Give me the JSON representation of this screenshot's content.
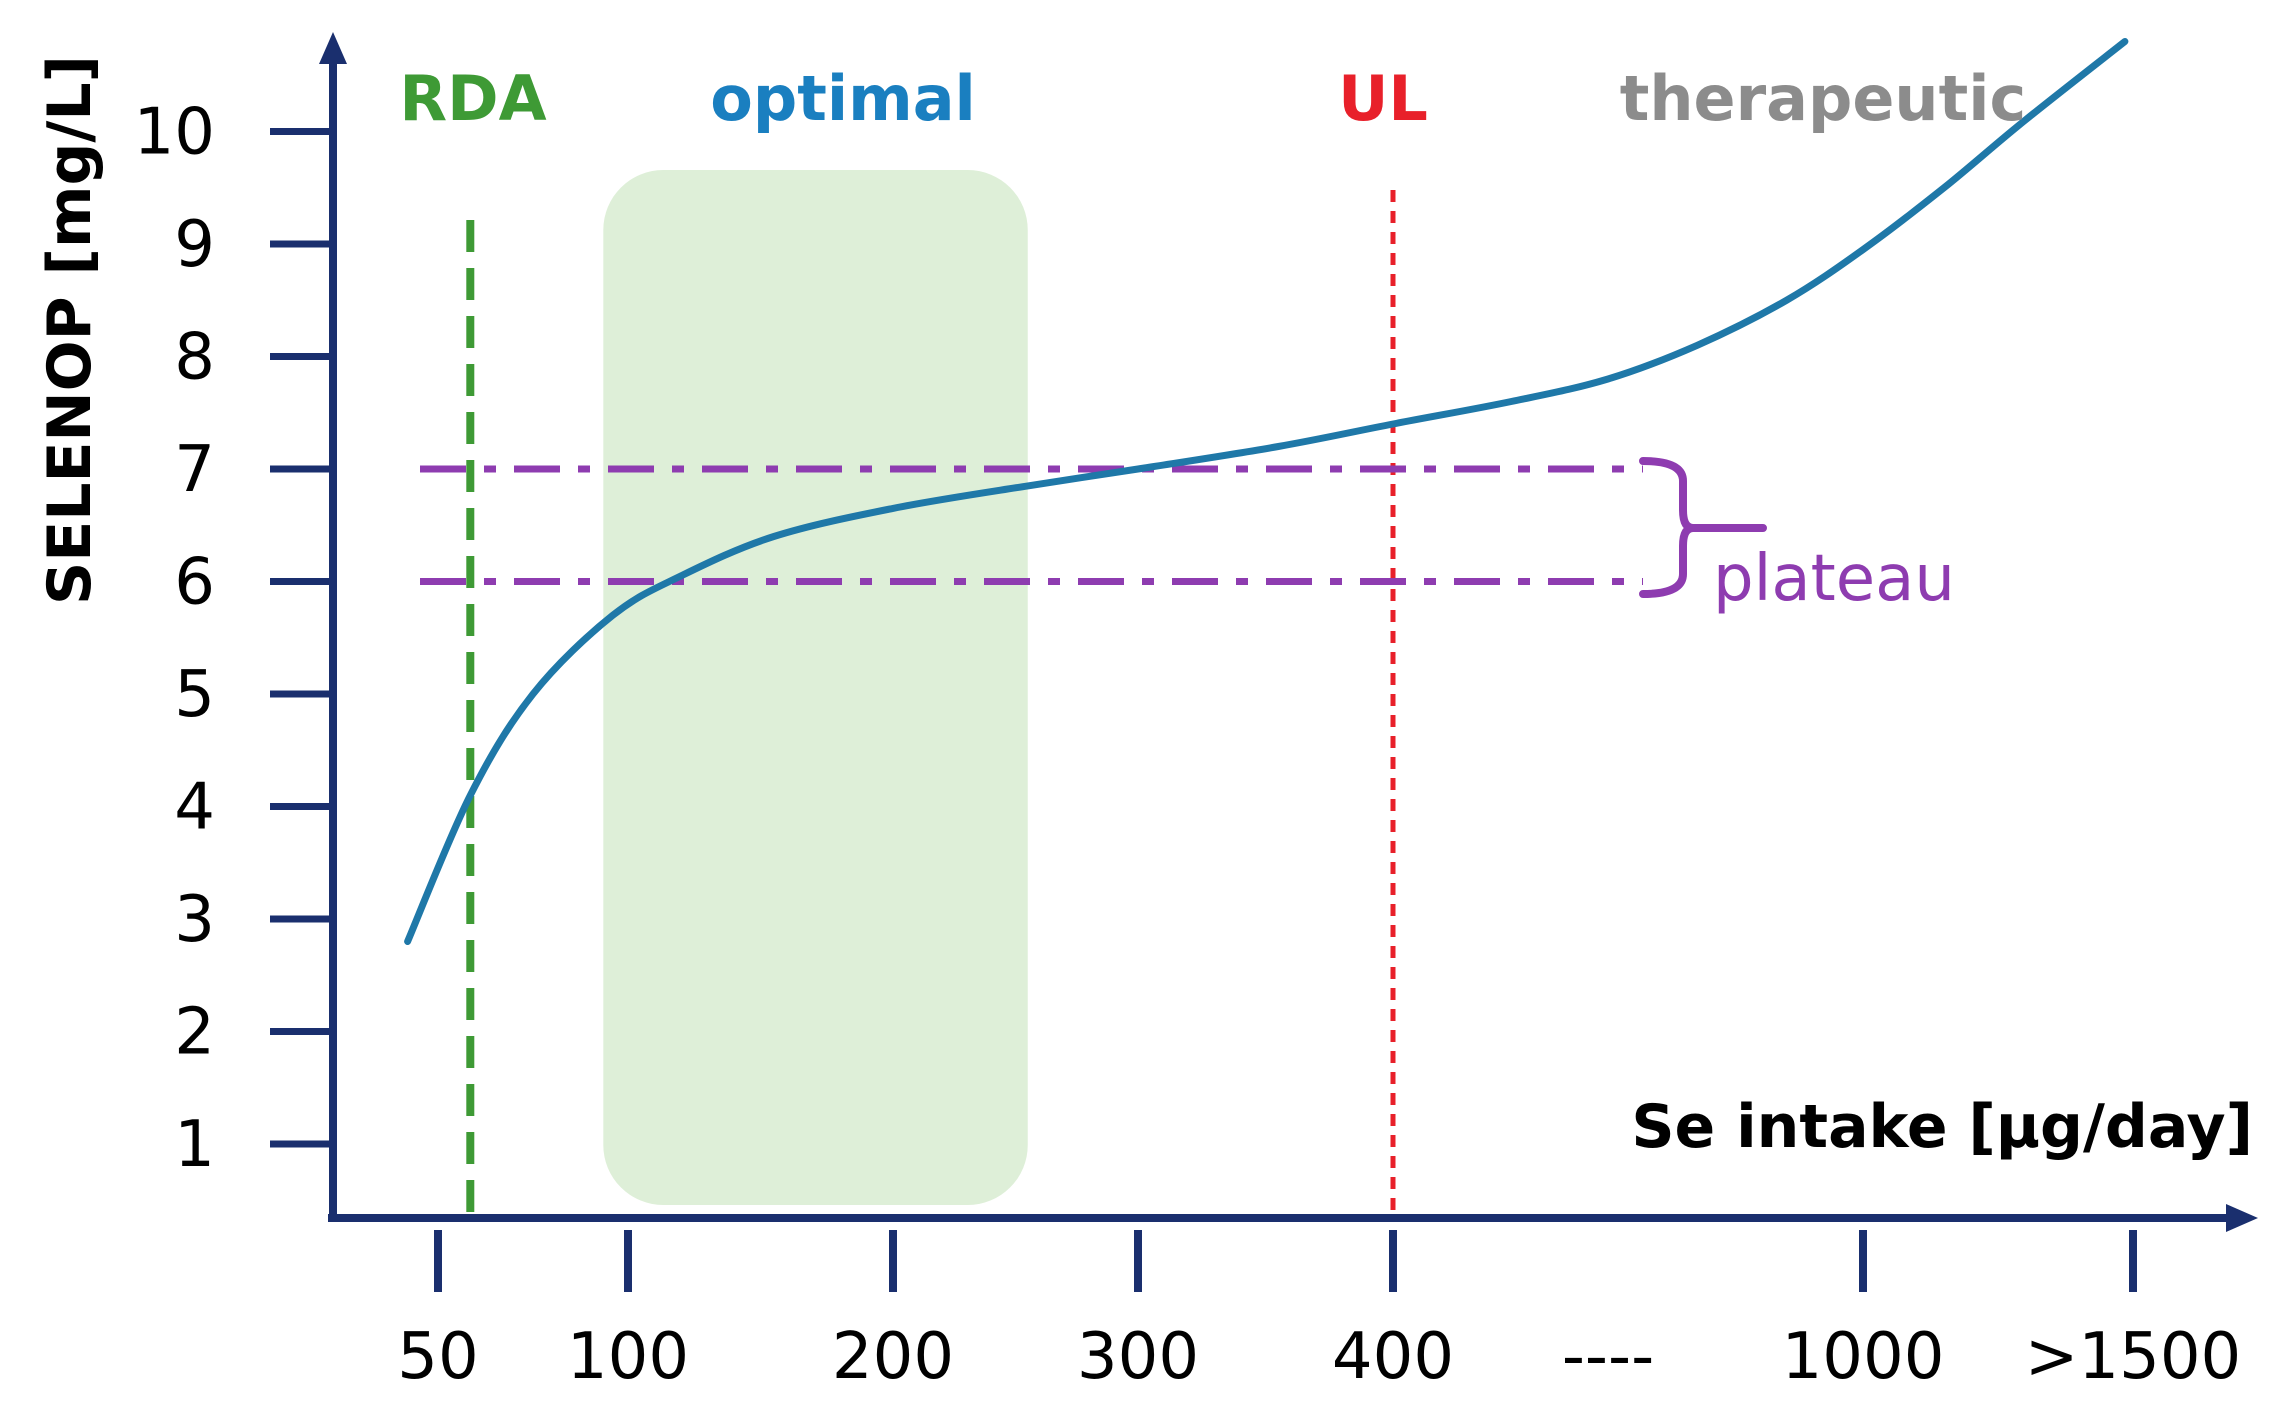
{
  "chart_data": {
    "type": "line",
    "xlabel": "Se intake [µg/day]",
    "ylabel": "SELENOP [mg/L]",
    "x_tick_labels": [
      "50",
      "100",
      "200",
      "300",
      "400",
      "----",
      "1000",
      ">1500"
    ],
    "y_ticks": [
      1,
      2,
      3,
      4,
      5,
      6,
      7,
      8,
      9,
      10
    ],
    "ylim": [
      0.3,
      10.8
    ],
    "series": [
      {
        "name": "SELENOP",
        "x_scale": "ordinal position (0 = 50, 1 = 100, 2 = 200, 3 = 300, 4 = 400, 5 = ----, 6 = 1000, 7 = >1500)",
        "points": [
          [
            -0.16,
            2.8
          ],
          [
            0.17,
            4.1
          ],
          [
            0.5,
            5.0
          ],
          [
            0.92,
            5.7
          ],
          [
            1.2,
            6.05
          ],
          [
            1.55,
            6.4
          ],
          [
            2.0,
            6.65
          ],
          [
            2.55,
            6.85
          ],
          [
            3.0,
            7.0
          ],
          [
            3.55,
            7.2
          ],
          [
            4.0,
            7.4
          ],
          [
            4.55,
            7.6
          ],
          [
            5.0,
            7.8
          ],
          [
            5.35,
            8.1
          ],
          [
            5.7,
            8.5
          ],
          [
            6.0,
            8.95
          ],
          [
            6.3,
            9.5
          ],
          [
            6.6,
            10.1
          ],
          [
            6.97,
            10.8
          ]
        ],
        "color": "#1f78a8"
      }
    ],
    "regions": [
      {
        "label": "RDA",
        "type": "vline",
        "x_pos": 0.17,
        "color": "#3e9a35",
        "style": "dashed"
      },
      {
        "label": "optimal",
        "type": "band",
        "x_range": [
          0.87,
          2.55
        ],
        "color": "#1a7fc0",
        "fill": "#deefd8"
      },
      {
        "label": "UL",
        "type": "vline",
        "x_pos": 4.0,
        "color": "#e8202a",
        "style": "dotted"
      },
      {
        "label": "therapeutic",
        "type": "label",
        "color": "#8c8c8c"
      }
    ],
    "plateau": {
      "label": "plateau",
      "y_range": [
        6,
        7
      ],
      "color": "#8e3cb0",
      "style": "dash-dot"
    }
  }
}
